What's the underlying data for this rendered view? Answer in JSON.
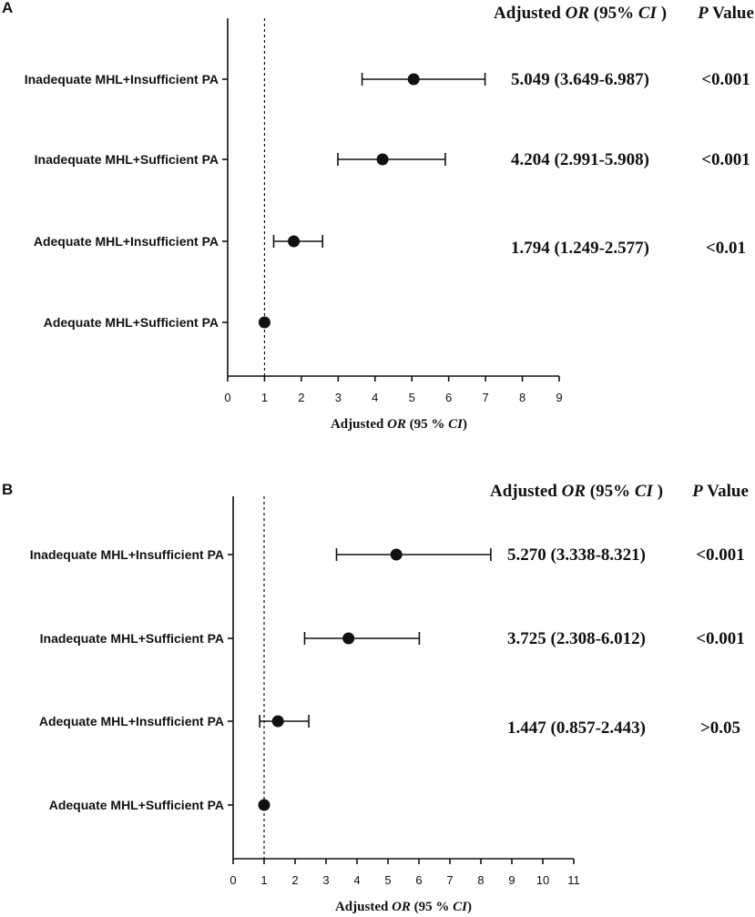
{
  "chart_data": [
    {
      "type": "forest",
      "panel": "A",
      "xlabel_prefix": "Adjusted ",
      "xlabel_italic": "OR",
      "xlabel_suffix": " (95 % ",
      "xlabel_italic2": "CI",
      "xlabel_end": ")",
      "header_or_prefix": "Adjusted ",
      "header_or_italic": "OR",
      "header_or_mid": " (95% ",
      "header_or_italic2": "CI",
      "header_or_end": " )",
      "header_p_italic": "P",
      "header_p_rest": " Value",
      "xlim": [
        0,
        9
      ],
      "ticks": [
        "0",
        "1",
        "2",
        "3",
        "4",
        "5",
        "6",
        "7",
        "8",
        "9"
      ],
      "reference": 1,
      "rows": [
        {
          "label": "Inadequate MHL+Insufficient PA",
          "or": 5.049,
          "lo": 3.649,
          "hi": 6.987,
          "text": "5.049 (3.649-6.987)",
          "p": "<0.001"
        },
        {
          "label": "Inadequate MHL+Sufficient PA",
          "or": 4.204,
          "lo": 2.991,
          "hi": 5.908,
          "text": "4.204 (2.991-5.908)",
          "p": "<0.001"
        },
        {
          "label": "Adequate MHL+Insufficient PA",
          "or": 1.794,
          "lo": 1.249,
          "hi": 2.577,
          "text": "1.794 (1.249-2.577)",
          "p": "<0.01"
        },
        {
          "label": "Adequate MHL+Sufficient PA",
          "or": 1,
          "lo": 1,
          "hi": 1,
          "text": "",
          "p": ""
        }
      ]
    },
    {
      "type": "forest",
      "panel": "B",
      "xlabel_prefix": "Adjusted ",
      "xlabel_italic": "OR",
      "xlabel_suffix": " (95 % ",
      "xlabel_italic2": "CI",
      "xlabel_end": ")",
      "header_or_prefix": "Adjusted ",
      "header_or_italic": "OR",
      "header_or_mid": " (95% ",
      "header_or_italic2": "CI",
      "header_or_end": " )",
      "header_p_italic": "P",
      "header_p_rest": " Value",
      "xlim": [
        0,
        11
      ],
      "ticks": [
        "0",
        "1",
        "2",
        "3",
        "4",
        "5",
        "6",
        "7",
        "8",
        "9",
        "10",
        "11"
      ],
      "reference": 1,
      "rows": [
        {
          "label": "Inadequate MHL+Insufficient PA",
          "or": 5.27,
          "lo": 3.338,
          "hi": 8.321,
          "text": "5.270 (3.338-8.321)",
          "p": "<0.001"
        },
        {
          "label": "Inadequate MHL+Sufficient PA",
          "or": 3.725,
          "lo": 2.308,
          "hi": 6.012,
          "text": "3.725 (2.308-6.012)",
          "p": "<0.001"
        },
        {
          "label": "Adequate MHL+Insufficient PA",
          "or": 1.447,
          "lo": 0.857,
          "hi": 2.443,
          "text": "1.447 (0.857-2.443)",
          "p": ">0.05"
        },
        {
          "label": "Adequate MHL+Sufficient PA",
          "or": 1,
          "lo": 1,
          "hi": 1,
          "text": "",
          "p": ""
        }
      ]
    }
  ]
}
